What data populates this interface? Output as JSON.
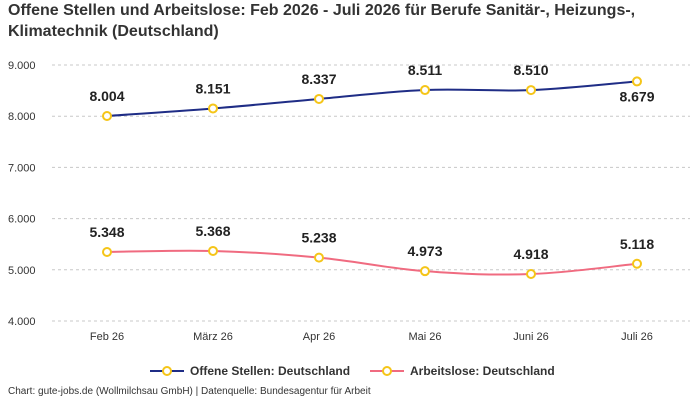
{
  "title": "Offene Stellen und Arbeitslose: Feb 2026 - Juli 2026 für Berufe Sanitär-, Heizungs-, Klimatechnik (Deutschland)",
  "footer": "Chart: gute-jobs.de (Wollmilchsau GmbH) | Datenquelle: Bundesagentur für Arbeit",
  "chart_data": {
    "type": "line",
    "categories": [
      "Feb 26",
      "März 26",
      "Apr 26",
      "Mai 26",
      "Juni 26",
      "Juli 26"
    ],
    "series": [
      {
        "name": "Offene Stellen: Deutschland",
        "values": [
          8004,
          8151,
          8337,
          8511,
          8510,
          8679
        ],
        "labels": [
          "8.004",
          "8.151",
          "8.337",
          "8.511",
          "8.510",
          "8.679"
        ],
        "color": "#1f2d86"
      },
      {
        "name": "Arbeitslose: Deutschland",
        "values": [
          5348,
          5368,
          5238,
          4973,
          4918,
          5118
        ],
        "labels": [
          "5.348",
          "5.368",
          "5.238",
          "4.973",
          "4.918",
          "5.118"
        ],
        "color": "#f06b80"
      }
    ],
    "ylim": [
      4000,
      9000
    ],
    "yticks": [
      {
        "value": 4000,
        "label": "4.000"
      },
      {
        "value": 5000,
        "label": "5.000"
      },
      {
        "value": 6000,
        "label": "6.000"
      },
      {
        "value": 7000,
        "label": "7.000"
      },
      {
        "value": 8000,
        "label": "8.000"
      },
      {
        "value": 9000,
        "label": "9.000"
      }
    ],
    "marker_color": "#f5c518",
    "grid": true,
    "legend": "bottom"
  }
}
